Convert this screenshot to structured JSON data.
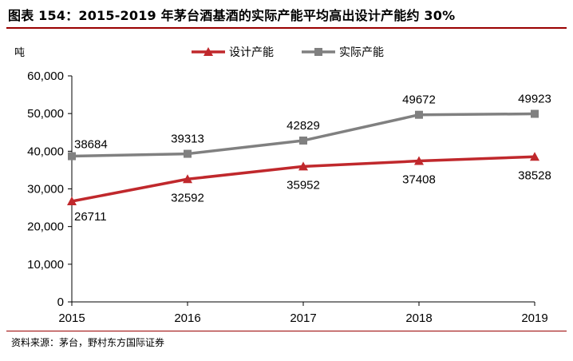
{
  "title": "图表 154：2015-2019 年茅台酒基酒的实际产能平均高出设计产能约 30%",
  "source": "资料来源：茅台，野村东方国际证券",
  "colors": {
    "accent_rule": "#9a0000"
  },
  "chart_data": {
    "type": "line",
    "title": "图表 154：2015-2019 年茅台酒基酒的实际产能平均高出设计产能约 30%",
    "ylabel": "吨",
    "xlabel": "",
    "categories": [
      "2015",
      "2016",
      "2017",
      "2018",
      "2019"
    ],
    "ylim": [
      0,
      60000
    ],
    "yticks": [
      "0",
      "10,000",
      "20,000",
      "30,000",
      "40,000",
      "50,000",
      "60,000"
    ],
    "grid": false,
    "legend_position": "top-right",
    "series": [
      {
        "name": "设计产能",
        "color": "#c0282c",
        "marker": "triangle",
        "values": [
          26711,
          32592,
          35952,
          37408,
          38528
        ]
      },
      {
        "name": "实际产能",
        "color": "#808080",
        "marker": "square",
        "values": [
          38684,
          39313,
          42829,
          49672,
          49923
        ]
      }
    ]
  }
}
